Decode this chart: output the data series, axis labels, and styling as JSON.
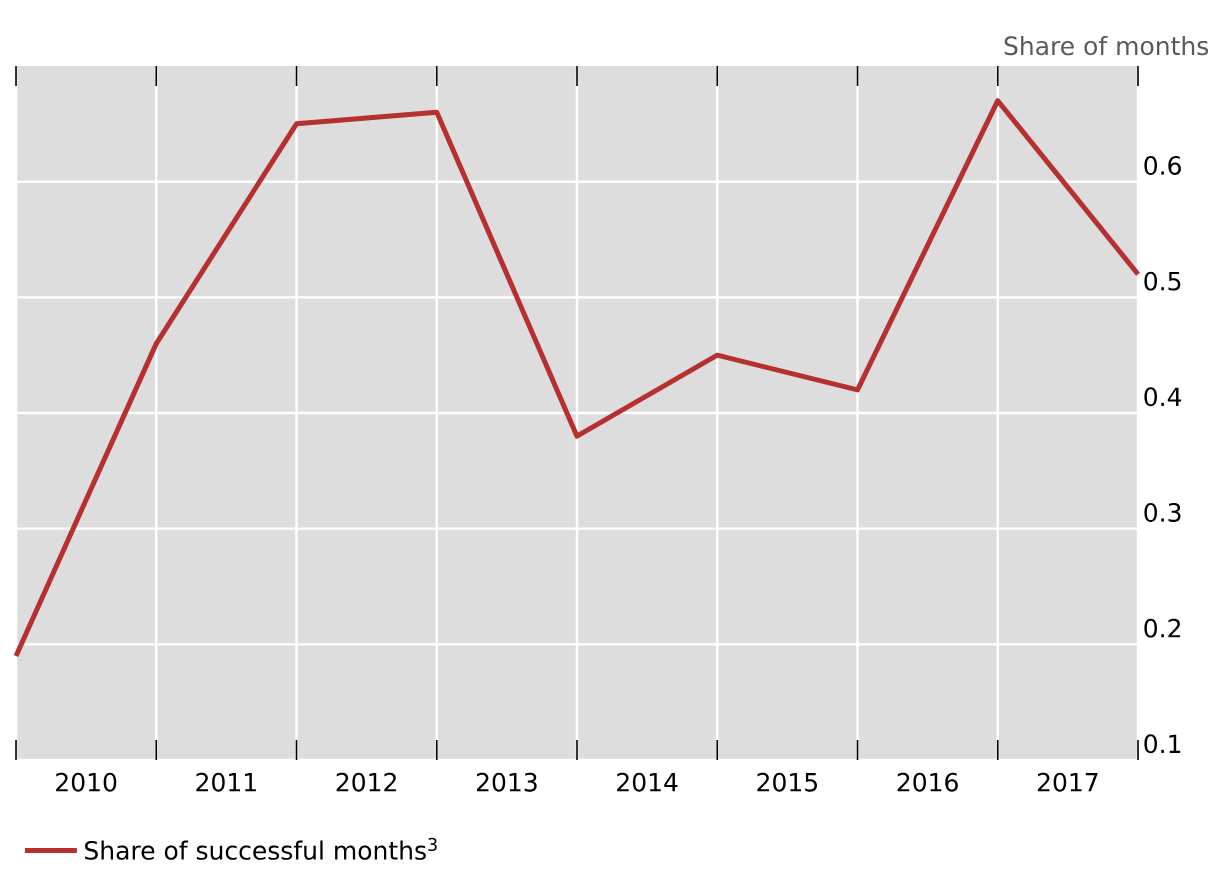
{
  "chart_data": {
    "type": "line",
    "ylabel": "Share of months",
    "x": [
      2010,
      2011,
      2012,
      2013,
      2014,
      2015,
      2016,
      2017,
      2018
    ],
    "series": [
      {
        "name": "Share of successful months$^{3}$",
        "color": "#b5302f",
        "values": [
          0.19,
          0.46,
          0.65,
          0.66,
          0.38,
          0.45,
          0.42,
          0.67,
          0.52
        ]
      }
    ],
    "xlim": [
      2010,
      2018
    ],
    "xticks": [
      {
        "value": 2010,
        "label": null
      },
      {
        "value": 2011,
        "label": null
      },
      {
        "value": 2012,
        "label": null
      },
      {
        "value": 2013,
        "label": null
      },
      {
        "value": 2014,
        "label": null
      },
      {
        "value": 2015,
        "label": null
      },
      {
        "value": 2016,
        "label": null
      },
      {
        "value": 2017,
        "label": null
      },
      {
        "value": 2018,
        "label": null
      },
      {
        "value": 2010.5,
        "label": "2010"
      },
      {
        "value": 2011.5,
        "label": "2011"
      },
      {
        "value": 2012.5,
        "label": "2012"
      },
      {
        "value": 2013.5,
        "label": "2013"
      },
      {
        "value": 2014.5,
        "label": "2014"
      },
      {
        "value": 2015.5,
        "label": "2015"
      },
      {
        "value": 2016.5,
        "label": "2016"
      },
      {
        "value": 2017.5,
        "label": "2017"
      }
    ],
    "ylim": [
      0.1,
      0.7
    ],
    "yticks": [
      0.1,
      0.2,
      0.3,
      0.4,
      0.5,
      0.6
    ],
    "grid": true,
    "legend": "bottom",
    "marker": "none",
    "line_style": "solid"
  }
}
